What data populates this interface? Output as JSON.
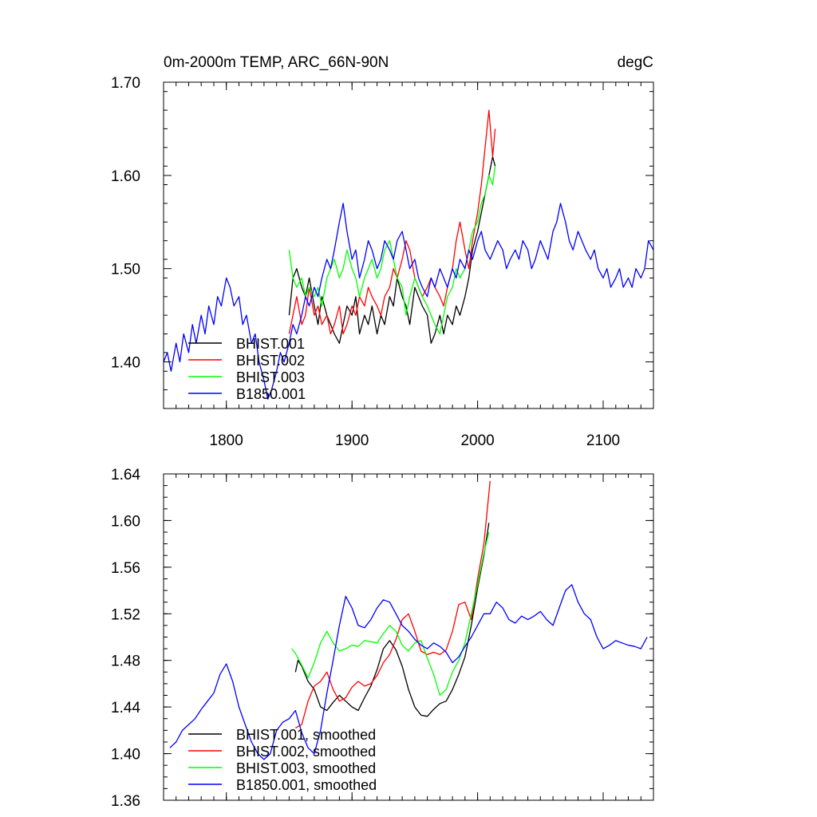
{
  "chart_data": [
    {
      "type": "line",
      "title": "0m-2000m TEMP, ARC_66N-90N",
      "units": "degC",
      "xlabel": "",
      "ylabel": "",
      "xlim": [
        1750,
        2140
      ],
      "ylim": [
        1.35,
        1.7
      ],
      "xticks": [
        1800,
        1900,
        2000,
        2100
      ],
      "xtick_labels": [
        "1800",
        "1900",
        "2000",
        "2100"
      ],
      "yticks": [
        1.4,
        1.5,
        1.6,
        1.7
      ],
      "ytick_labels": [
        "1.40",
        "1.50",
        "1.60",
        "1.70"
      ],
      "show_xtick_labels": true,
      "legend_position": "bottom-left",
      "series": [
        {
          "name": "BHIST.001",
          "color": "#000000",
          "x": [
            1850,
            1853,
            1856,
            1860,
            1863,
            1866,
            1870,
            1873,
            1876,
            1880,
            1883,
            1886,
            1890,
            1893,
            1896,
            1900,
            1903,
            1906,
            1910,
            1913,
            1916,
            1920,
            1923,
            1926,
            1930,
            1933,
            1936,
            1940,
            1943,
            1946,
            1950,
            1953,
            1956,
            1960,
            1963,
            1966,
            1970,
            1973,
            1976,
            1980,
            1983,
            1986,
            1990,
            1993,
            1996,
            2000,
            2003,
            2006,
            2009,
            2012,
            2014
          ],
          "values": [
            1.45,
            1.49,
            1.5,
            1.48,
            1.47,
            1.49,
            1.46,
            1.44,
            1.47,
            1.45,
            1.44,
            1.43,
            1.42,
            1.44,
            1.46,
            1.45,
            1.47,
            1.43,
            1.45,
            1.44,
            1.46,
            1.43,
            1.45,
            1.44,
            1.47,
            1.46,
            1.49,
            1.47,
            1.46,
            1.44,
            1.48,
            1.47,
            1.46,
            1.45,
            1.42,
            1.43,
            1.45,
            1.43,
            1.45,
            1.44,
            1.46,
            1.45,
            1.47,
            1.49,
            1.52,
            1.54,
            1.56,
            1.58,
            1.6,
            1.62,
            1.61
          ]
        },
        {
          "name": "BHIST.002",
          "color": "#ff0000",
          "x": [
            1850,
            1853,
            1856,
            1860,
            1863,
            1866,
            1870,
            1873,
            1876,
            1880,
            1883,
            1886,
            1890,
            1893,
            1896,
            1900,
            1903,
            1906,
            1910,
            1913,
            1916,
            1920,
            1923,
            1926,
            1930,
            1933,
            1936,
            1940,
            1943,
            1946,
            1950,
            1953,
            1956,
            1960,
            1963,
            1966,
            1970,
            1973,
            1976,
            1980,
            1983,
            1986,
            1990,
            1993,
            1996,
            2000,
            2003,
            2006,
            2009,
            2012,
            2014
          ],
          "values": [
            1.43,
            1.45,
            1.47,
            1.44,
            1.45,
            1.48,
            1.45,
            1.46,
            1.44,
            1.45,
            1.43,
            1.44,
            1.46,
            1.43,
            1.44,
            1.46,
            1.45,
            1.47,
            1.46,
            1.48,
            1.47,
            1.46,
            1.45,
            1.47,
            1.48,
            1.5,
            1.49,
            1.51,
            1.53,
            1.52,
            1.49,
            1.48,
            1.47,
            1.48,
            1.49,
            1.48,
            1.47,
            1.46,
            1.48,
            1.5,
            1.53,
            1.55,
            1.52,
            1.5,
            1.53,
            1.56,
            1.59,
            1.63,
            1.67,
            1.62,
            1.65
          ]
        },
        {
          "name": "BHIST.003",
          "color": "#00ff00",
          "x": [
            1850,
            1853,
            1856,
            1860,
            1863,
            1866,
            1870,
            1873,
            1876,
            1880,
            1883,
            1886,
            1890,
            1893,
            1896,
            1900,
            1903,
            1906,
            1910,
            1913,
            1916,
            1920,
            1923,
            1926,
            1930,
            1933,
            1936,
            1940,
            1943,
            1946,
            1950,
            1953,
            1956,
            1960,
            1963,
            1966,
            1970,
            1973,
            1976,
            1980,
            1983,
            1986,
            1990,
            1993,
            1996,
            2000,
            2003,
            2006,
            2009,
            2012,
            2014
          ],
          "values": [
            1.52,
            1.49,
            1.48,
            1.49,
            1.47,
            1.48,
            1.47,
            1.48,
            1.46,
            1.49,
            1.5,
            1.51,
            1.49,
            1.5,
            1.52,
            1.5,
            1.49,
            1.47,
            1.49,
            1.5,
            1.51,
            1.49,
            1.5,
            1.52,
            1.53,
            1.51,
            1.49,
            1.48,
            1.45,
            1.47,
            1.49,
            1.48,
            1.47,
            1.46,
            1.45,
            1.44,
            1.43,
            1.45,
            1.47,
            1.48,
            1.5,
            1.49,
            1.5,
            1.52,
            1.54,
            1.55,
            1.57,
            1.58,
            1.6,
            1.59,
            1.61
          ]
        },
        {
          "name": "B1850.001",
          "color": "#0000ff",
          "x": [
            1750,
            1753,
            1756,
            1760,
            1763,
            1766,
            1770,
            1773,
            1776,
            1780,
            1783,
            1786,
            1790,
            1793,
            1796,
            1800,
            1803,
            1806,
            1810,
            1813,
            1816,
            1820,
            1823,
            1826,
            1830,
            1833,
            1836,
            1840,
            1843,
            1846,
            1850,
            1853,
            1856,
            1860,
            1863,
            1866,
            1870,
            1873,
            1876,
            1880,
            1883,
            1886,
            1890,
            1893,
            1896,
            1900,
            1903,
            1906,
            1910,
            1913,
            1916,
            1920,
            1923,
            1926,
            1930,
            1933,
            1936,
            1940,
            1943,
            1946,
            1950,
            1953,
            1956,
            1960,
            1963,
            1966,
            1970,
            1973,
            1976,
            1980,
            1983,
            1986,
            1990,
            1993,
            1996,
            2000,
            2003,
            2006,
            2010,
            2013,
            2016,
            2020,
            2023,
            2026,
            2030,
            2033,
            2036,
            2040,
            2043,
            2046,
            2050,
            2053,
            2056,
            2060,
            2063,
            2066,
            2070,
            2073,
            2076,
            2080,
            2083,
            2086,
            2090,
            2093,
            2096,
            2100,
            2103,
            2106,
            2110,
            2113,
            2116,
            2120,
            2123,
            2126,
            2130,
            2133,
            2136,
            2140
          ],
          "values": [
            1.4,
            1.41,
            1.39,
            1.42,
            1.4,
            1.43,
            1.41,
            1.44,
            1.42,
            1.45,
            1.43,
            1.46,
            1.44,
            1.47,
            1.46,
            1.49,
            1.48,
            1.46,
            1.47,
            1.44,
            1.45,
            1.42,
            1.43,
            1.4,
            1.38,
            1.36,
            1.37,
            1.39,
            1.41,
            1.4,
            1.42,
            1.44,
            1.43,
            1.45,
            1.47,
            1.46,
            1.48,
            1.47,
            1.49,
            1.51,
            1.5,
            1.52,
            1.55,
            1.57,
            1.54,
            1.51,
            1.52,
            1.49,
            1.51,
            1.53,
            1.52,
            1.5,
            1.51,
            1.53,
            1.52,
            1.51,
            1.53,
            1.54,
            1.52,
            1.5,
            1.51,
            1.49,
            1.48,
            1.47,
            1.49,
            1.48,
            1.5,
            1.49,
            1.48,
            1.5,
            1.49,
            1.51,
            1.5,
            1.52,
            1.51,
            1.53,
            1.54,
            1.52,
            1.51,
            1.52,
            1.53,
            1.52,
            1.5,
            1.51,
            1.52,
            1.51,
            1.53,
            1.52,
            1.5,
            1.51,
            1.53,
            1.52,
            1.51,
            1.54,
            1.55,
            1.57,
            1.55,
            1.53,
            1.52,
            1.54,
            1.53,
            1.52,
            1.51,
            1.52,
            1.5,
            1.49,
            1.5,
            1.48,
            1.49,
            1.5,
            1.48,
            1.49,
            1.48,
            1.5,
            1.49,
            1.5,
            1.53,
            1.52
          ]
        }
      ]
    },
    {
      "type": "line",
      "title": "",
      "units": "",
      "xlabel": "",
      "ylabel": "",
      "xlim": [
        1750,
        2140
      ],
      "ylim": [
        1.36,
        1.64
      ],
      "xticks": [
        1800,
        1900,
        2000,
        2100
      ],
      "xtick_labels": [],
      "yticks": [
        1.36,
        1.4,
        1.44,
        1.48,
        1.52,
        1.56,
        1.6,
        1.64
      ],
      "ytick_labels": [
        "1.36",
        "1.40",
        "1.44",
        "1.48",
        "1.52",
        "1.56",
        "1.60",
        "1.64"
      ],
      "show_xtick_labels": false,
      "legend_position": "bottom-left",
      "series": [
        {
          "name": "BHIST.001, smoothed",
          "color": "#000000",
          "x": [
            1855,
            1857,
            1860,
            1865,
            1870,
            1875,
            1880,
            1885,
            1890,
            1895,
            1900,
            1905,
            1910,
            1915,
            1920,
            1925,
            1930,
            1935,
            1940,
            1945,
            1950,
            1955,
            1960,
            1965,
            1970,
            1975,
            1980,
            1985,
            1990,
            1995,
            2000,
            2005,
            2009
          ],
          "values": [
            1.47,
            1.48,
            1.475,
            1.462,
            1.455,
            1.44,
            1.437,
            1.444,
            1.45,
            1.445,
            1.44,
            1.437,
            1.448,
            1.458,
            1.472,
            1.49,
            1.497,
            1.489,
            1.475,
            1.455,
            1.44,
            1.433,
            1.432,
            1.438,
            1.443,
            1.445,
            1.455,
            1.468,
            1.483,
            1.51,
            1.542,
            1.57,
            1.598
          ]
        },
        {
          "name": "BHIST.002, smoothed",
          "color": "#ff0000",
          "x": [
            1855,
            1860,
            1865,
            1870,
            1875,
            1880,
            1885,
            1890,
            1895,
            1900,
            1905,
            1910,
            1915,
            1920,
            1925,
            1930,
            1935,
            1940,
            1945,
            1950,
            1955,
            1960,
            1965,
            1970,
            1975,
            1980,
            1985,
            1990,
            1995,
            2000,
            2005,
            2010
          ],
          "values": [
            1.422,
            1.425,
            1.445,
            1.458,
            1.462,
            1.47,
            1.455,
            1.445,
            1.448,
            1.457,
            1.462,
            1.458,
            1.46,
            1.467,
            1.478,
            1.485,
            1.498,
            1.515,
            1.52,
            1.505,
            1.488,
            1.485,
            1.487,
            1.485,
            1.489,
            1.505,
            1.528,
            1.53,
            1.515,
            1.55,
            1.58,
            1.634
          ]
        },
        {
          "name": "BHIST.003, smoothed",
          "color": "#00ff00",
          "x": [
            1852,
            1855,
            1860,
            1865,
            1870,
            1875,
            1880,
            1885,
            1890,
            1895,
            1900,
            1905,
            1910,
            1915,
            1920,
            1925,
            1930,
            1935,
            1940,
            1945,
            1950,
            1955,
            1960,
            1965,
            1970,
            1975,
            1980,
            1985,
            1990,
            1995,
            2000,
            2005,
            2009
          ],
          "values": [
            1.49,
            1.486,
            1.476,
            1.465,
            1.478,
            1.495,
            1.505,
            1.495,
            1.488,
            1.49,
            1.493,
            1.492,
            1.497,
            1.496,
            1.495,
            1.503,
            1.51,
            1.505,
            1.493,
            1.488,
            1.495,
            1.497,
            1.482,
            1.468,
            1.45,
            1.455,
            1.47,
            1.48,
            1.495,
            1.52,
            1.545,
            1.572,
            1.59
          ]
        },
        {
          "name": "B1850.001, smoothed",
          "color": "#0000ff",
          "x": [
            1755,
            1760,
            1765,
            1770,
            1775,
            1780,
            1785,
            1790,
            1795,
            1800,
            1805,
            1810,
            1815,
            1820,
            1825,
            1830,
            1835,
            1840,
            1845,
            1850,
            1855,
            1860,
            1865,
            1870,
            1875,
            1880,
            1885,
            1890,
            1895,
            1900,
            1905,
            1910,
            1915,
            1920,
            1925,
            1930,
            1935,
            1940,
            1945,
            1950,
            1955,
            1960,
            1965,
            1970,
            1975,
            1980,
            1985,
            1990,
            1995,
            2000,
            2005,
            2010,
            2015,
            2020,
            2025,
            2030,
            2035,
            2040,
            2045,
            2050,
            2055,
            2060,
            2065,
            2070,
            2075,
            2080,
            2085,
            2090,
            2095,
            2100,
            2105,
            2110,
            2115,
            2120,
            2125,
            2130,
            2135
          ],
          "values": [
            1.405,
            1.41,
            1.42,
            1.425,
            1.43,
            1.438,
            1.445,
            1.452,
            1.468,
            1.477,
            1.462,
            1.44,
            1.425,
            1.41,
            1.4,
            1.395,
            1.4,
            1.42,
            1.427,
            1.43,
            1.437,
            1.418,
            1.405,
            1.4,
            1.42,
            1.452,
            1.48,
            1.51,
            1.535,
            1.525,
            1.51,
            1.508,
            1.515,
            1.525,
            1.532,
            1.53,
            1.52,
            1.51,
            1.505,
            1.498,
            1.493,
            1.49,
            1.495,
            1.492,
            1.487,
            1.478,
            1.483,
            1.492,
            1.5,
            1.51,
            1.52,
            1.52,
            1.53,
            1.525,
            1.515,
            1.512,
            1.518,
            1.515,
            1.518,
            1.522,
            1.515,
            1.51,
            1.525,
            1.54,
            1.545,
            1.53,
            1.52,
            1.515,
            1.5,
            1.49,
            1.493,
            1.497,
            1.495,
            1.493,
            1.492,
            1.49,
            1.5
          ]
        }
      ]
    }
  ]
}
